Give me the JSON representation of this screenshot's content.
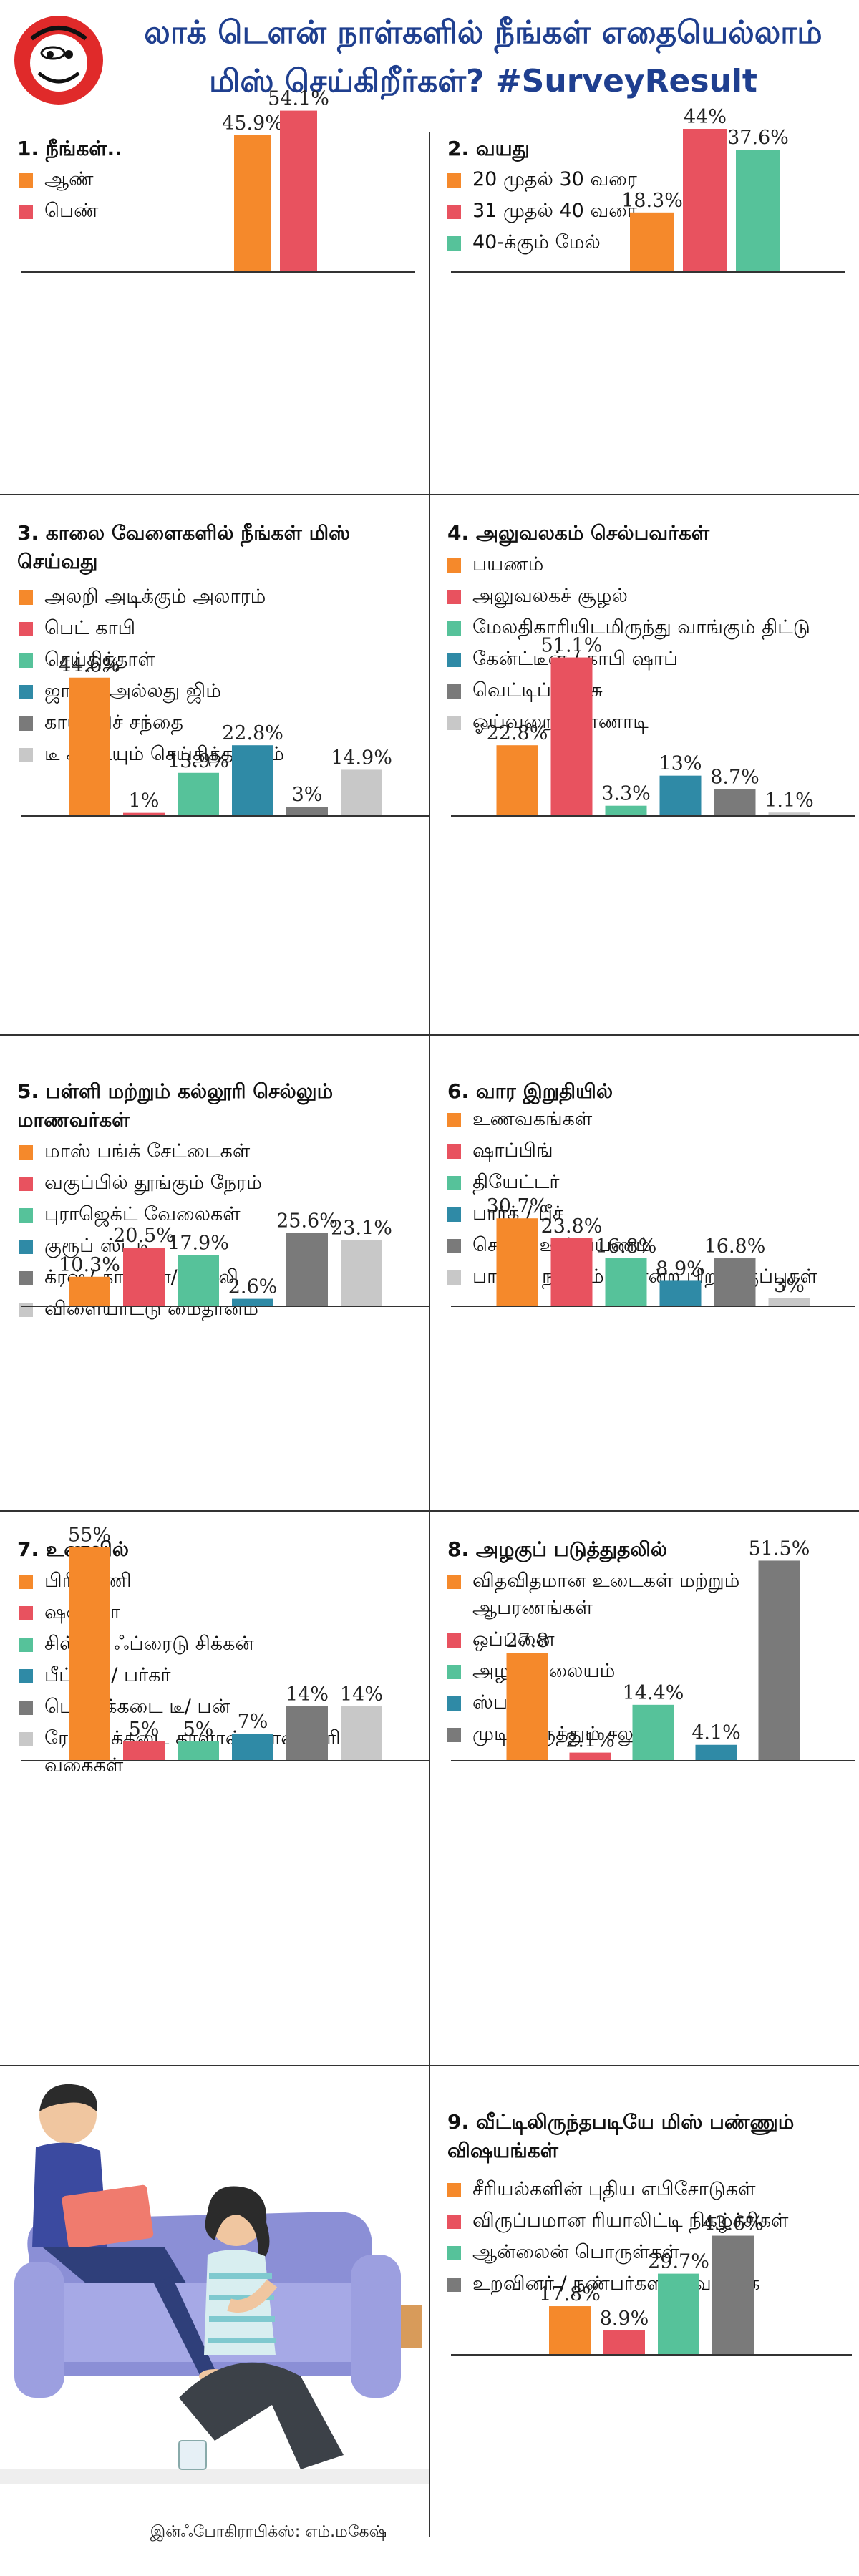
{
  "header": {
    "title_line1": "லாக் டௌன் நாள்களில் நீங்கள் எதையெல்லாம்",
    "title_line2": "மிஸ் செய்கிறீர்கள்? #SurveyResult"
  },
  "colors": {
    "orange": "#f5892b",
    "red": "#e8525f",
    "green": "#56c29a",
    "teal": "#2f8aa6",
    "darkgray": "#7a7a7a",
    "lightgray": "#c8c8c8",
    "title_blue": "#1f3f8f"
  },
  "credit": "இன்ஃபோகிராபிக்ஸ்: எம்.மகேஷ்",
  "chart_data": [
    {
      "type": "bar",
      "title": "1. நீங்கள்..",
      "categories": [
        "ஆண்",
        "பெண்"
      ],
      "values": [
        45.9,
        54.1
      ],
      "labels": [
        "45.9%",
        "54.1%"
      ],
      "colors": [
        "#f5892b",
        "#e8525f"
      ]
    },
    {
      "type": "bar",
      "title": "2. வயது",
      "categories": [
        "20 முதல் 30 வரை",
        "31 முதல் 40 வரை",
        "40-க்கும் மேல்"
      ],
      "values": [
        18.3,
        44,
        37.6
      ],
      "labels": [
        "18.3%",
        "44%",
        "37.6%"
      ],
      "colors": [
        "#f5892b",
        "#e8525f",
        "#56c29a"
      ]
    },
    {
      "type": "bar",
      "title": "3. காலை வேளைகளில் நீங்கள் மிஸ் செய்வது",
      "categories": [
        "அலறி அடிக்கும் அலாரம்",
        "பெட் காபி",
        "செய்தித்தாள்",
        "ஜாகிங் அல்லது ஜிம்",
        "காய்கறிச் சந்தை",
        "டீ கடையும் செய்தித்தாளும்"
      ],
      "values": [
        44.6,
        1,
        13.9,
        22.8,
        3,
        14.9
      ],
      "labels": [
        "44.6%",
        "1%",
        "13.9%",
        "22.8%",
        "3%",
        "14.9%"
      ],
      "colors": [
        "#f5892b",
        "#e8525f",
        "#56c29a",
        "#2f8aa6",
        "#7a7a7a",
        "#c8c8c8"
      ]
    },
    {
      "type": "bar",
      "title": "4. அலுவலகம் செல்பவர்கள்",
      "categories": [
        "பயணம்",
        "அலுவலகச் சூழல்",
        "மேலதிகாரியிடமிருந்து வாங்கும் திட்டு",
        "கேன்ட்டீன் / காபி ஷாப்",
        "வெட்டிப்பேச்சு",
        "ஓய்வறை கண்ணாடி"
      ],
      "values": [
        22.8,
        51.1,
        3.3,
        13,
        8.7,
        1.1
      ],
      "labels": [
        "22.8%",
        "51.1%",
        "3.3%",
        "13%",
        "8.7%",
        "1.1%"
      ],
      "colors": [
        "#f5892b",
        "#e8525f",
        "#56c29a",
        "#2f8aa6",
        "#7a7a7a",
        "#c8c8c8"
      ]
    },
    {
      "type": "bar",
      "title": "5. பள்ளி மற்றும் கல்லூரி செல்லும் மாணவர்கள்",
      "categories": [
        "மாஸ் பங்க் சேட்டைகள்",
        "வகுப்பில் தூங்கும் நேரம்",
        "புராஜெக்ட் வேலைகள்",
        "குரூப் ஸ்டடி",
        "க்ரஷ்/ காதலன்/ காதலி",
        "விளையாட்டு மைதானம்"
      ],
      "values": [
        10.3,
        20.5,
        17.9,
        2.6,
        25.6,
        23.1
      ],
      "labels": [
        "10.3%",
        "20.5%",
        "17.9%",
        "2.6%",
        "25.6%",
        "23.1%"
      ],
      "colors": [
        "#f5892b",
        "#e8525f",
        "#56c29a",
        "#2f8aa6",
        "#7a7a7a",
        "#c8c8c8"
      ]
    },
    {
      "type": "bar",
      "title": "6. வார இறுதியில்",
      "categories": [
        "உணவகங்கள்",
        "ஷாப்பிங்",
        "தியேட்டர்",
        "பார்க் / பீச்",
        "சொந்த ஊர் பயணம்",
        "பாட்டு, நடனம் போன்ற பிற வகுப்புகள்"
      ],
      "values": [
        30.7,
        23.8,
        16.8,
        8.9,
        16.8,
        3
      ],
      "labels": [
        "30.7%",
        "23.8%",
        "16.8%",
        "8.9%",
        "16.8%",
        "3%"
      ],
      "colors": [
        "#f5892b",
        "#e8525f",
        "#56c29a",
        "#2f8aa6",
        "#7a7a7a",
        "#c8c8c8"
      ]
    },
    {
      "type": "bar",
      "title": "7. உணவில்",
      "categories": [
        "பிரியாணி",
        "ஷவர்மா",
        "சில்லி / ஃப்ரைடு சிக்கன்",
        "பீட்ஸா / பர்கர்",
        "பெட்டிக்கடை டீ/ பன்",
        "ரோட்டுக்கடை காளான், பானி பூரி வகைகள்"
      ],
      "values": [
        55,
        5,
        5,
        7,
        14,
        14
      ],
      "labels": [
        "55%",
        "5%",
        "5%",
        "7%",
        "14%",
        "14%"
      ],
      "colors": [
        "#f5892b",
        "#e8525f",
        "#56c29a",
        "#2f8aa6",
        "#7a7a7a",
        "#c8c8c8"
      ]
    },
    {
      "type": "bar",
      "title": "8. அழகுப் படுத்துதலில்",
      "categories": [
        "விதவிதமான உடைகள் மற்றும் ஆபரணங்கள்",
        "ஒப்பனை",
        "அழகு நிலையம்",
        "ஸ்பா",
        "முடித்திருத்தும் சலூன்"
      ],
      "values": [
        27.8,
        2.1,
        14.4,
        4.1,
        51.5
      ],
      "labels": [
        "27.8",
        "2.1%",
        "14.4%",
        "4.1%",
        "51.5%"
      ],
      "colors": [
        "#f5892b",
        "#e8525f",
        "#56c29a",
        "#2f8aa6",
        "#7a7a7a"
      ]
    },
    {
      "type": "bar",
      "title": "9. வீட்டிலிருந்தபடியே மிஸ் பண்ணும் விஷயங்கள்",
      "categories": [
        "சீரியல்களின் புதிய எபிசோடுகள்",
        "விருப்பமான ரியாலிட்டி நிகழ்ச்சிகள்",
        "ஆன்லைன் பொருள்கள்",
        "உறவினர் / நண்பர்களின் வருகை"
      ],
      "values": [
        17.8,
        8.9,
        29.7,
        43.6
      ],
      "labels": [
        "17.8%",
        "8.9%",
        "29.7%",
        "43.6%"
      ],
      "colors": [
        "#f5892b",
        "#e8525f",
        "#56c29a",
        "#7a7a7a"
      ]
    }
  ]
}
